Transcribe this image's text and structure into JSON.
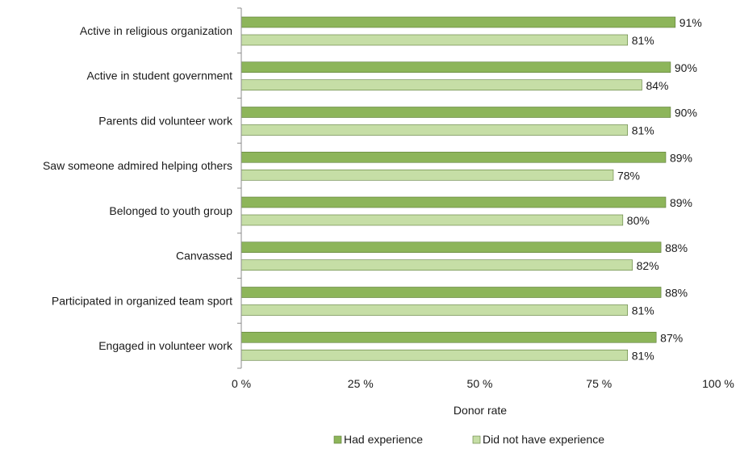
{
  "chart_data": {
    "type": "bar",
    "orientation": "horizontal",
    "categories": [
      "Active in religious organization",
      "Active in student government",
      "Parents did volunteer work",
      "Saw someone admired helping others",
      "Belonged to youth group",
      "Canvassed",
      "Participated in organized team sport",
      "Engaged in volunteer work"
    ],
    "series": [
      {
        "name": "Had experience",
        "values": [
          91,
          90,
          90,
          89,
          89,
          88,
          88,
          87
        ],
        "labels": [
          "91%",
          "90%",
          "90%",
          "89%",
          "89%",
          "88%",
          "88%",
          "87%"
        ],
        "color": "#8db55a"
      },
      {
        "name": "Did not have experience",
        "values": [
          81,
          84,
          81,
          78,
          80,
          82,
          81,
          81
        ],
        "labels": [
          "81%",
          "84%",
          "81%",
          "78%",
          "80%",
          "82%",
          "81%",
          "81%"
        ],
        "color": "#c6dea6"
      }
    ],
    "xlabel": "Donor rate",
    "xlim": [
      0,
      100
    ],
    "xticks": [
      0,
      25,
      50,
      75,
      100
    ],
    "xtick_labels": [
      "0 %",
      "25 %",
      "50 %",
      "75 %",
      "100 %"
    ],
    "legend_position": "bottom",
    "grid": false
  }
}
